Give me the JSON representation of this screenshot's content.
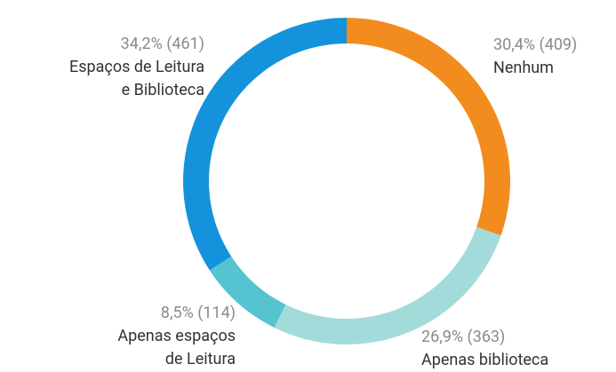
{
  "chart_data": {
    "type": "donut",
    "categories": [
      "Nenhum",
      "Apenas biblioteca",
      "Apenas espaços\nde Leitura",
      "Espaços de Leitura\ne Biblioteca"
    ],
    "values": [
      30.4,
      26.9,
      8.5,
      34.2
    ],
    "value_labels": [
      "30,4% (409)",
      "26,9% (363)",
      "8,5% (114)",
      "34,2% (461)"
    ],
    "colors": [
      "#f28c1e",
      "#a3dbdb",
      "#55c4d0",
      "#1592dc"
    ]
  }
}
